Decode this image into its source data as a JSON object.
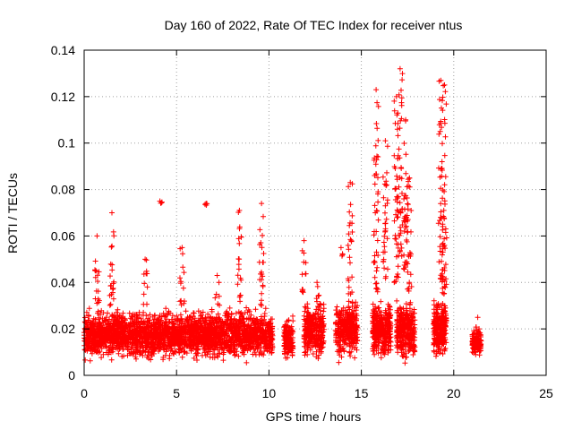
{
  "chart_data": {
    "type": "scatter",
    "title": "Day 160 of 2022, Rate Of TEC Index for receiver ntus",
    "xlabel": "GPS time / hours",
    "ylabel": "ROTI / TECUs",
    "xlim": [
      0,
      25
    ],
    "ylim": [
      0,
      0.14
    ],
    "x_ticks": [
      0,
      5,
      10,
      15,
      20,
      25
    ],
    "x_tick_labels": [
      "0",
      "5",
      "10",
      "15",
      "20",
      "25"
    ],
    "y_ticks": [
      0,
      0.02,
      0.04,
      0.06,
      0.08,
      0.1,
      0.12,
      0.14
    ],
    "y_tick_labels": [
      "0",
      "0.02",
      "0.04",
      "0.06",
      "0.08",
      "0.1",
      "0.12",
      "0.14"
    ],
    "grid": true,
    "marker": "+",
    "color": "#ff0000",
    "clusters": [
      {
        "x_range": [
          0,
          10.2
        ],
        "y_base": [
          0.005,
          0.03
        ],
        "count": 2600,
        "dense": true
      },
      {
        "x_range": [
          10.8,
          11.3
        ],
        "y_base": [
          0.004,
          0.027
        ],
        "count": 160
      },
      {
        "x_range": [
          11.9,
          13.0
        ],
        "y_base": [
          0.005,
          0.033
        ],
        "count": 300
      },
      {
        "x_range": [
          13.6,
          14.8
        ],
        "y_base": [
          0.005,
          0.035
        ],
        "count": 350
      },
      {
        "x_range": [
          15.6,
          16.6
        ],
        "y_base": [
          0.005,
          0.034
        ],
        "count": 320
      },
      {
        "x_range": [
          16.9,
          17.9
        ],
        "y_base": [
          0.004,
          0.034
        ],
        "count": 340
      },
      {
        "x_range": [
          18.9,
          19.6
        ],
        "y_base": [
          0.005,
          0.035
        ],
        "count": 280
      },
      {
        "x_range": [
          21.0,
          21.5
        ],
        "y_base": [
          0.007,
          0.022
        ],
        "count": 120
      }
    ],
    "spikes": [
      {
        "x": 0.7,
        "y_range": [
          0.03,
          0.06
        ]
      },
      {
        "x": 1.5,
        "y_range": [
          0.03,
          0.07
        ]
      },
      {
        "x": 3.3,
        "y_range": [
          0.03,
          0.05
        ]
      },
      {
        "x": 4.1,
        "y_range": [
          0.074,
          0.075
        ]
      },
      {
        "x": 5.3,
        "y_range": [
          0.03,
          0.055
        ]
      },
      {
        "x": 6.6,
        "y_range": [
          0.073,
          0.074
        ]
      },
      {
        "x": 7.2,
        "y_range": [
          0.03,
          0.043
        ]
      },
      {
        "x": 8.4,
        "y_range": [
          0.03,
          0.071
        ]
      },
      {
        "x": 9.6,
        "y_range": [
          0.03,
          0.074
        ]
      },
      {
        "x": 11.9,
        "y_range": [
          0.035,
          0.058
        ]
      },
      {
        "x": 12.6,
        "y_range": [
          0.03,
          0.04
        ]
      },
      {
        "x": 13.9,
        "y_range": [
          0.05,
          0.055
        ]
      },
      {
        "x": 14.4,
        "y_range": [
          0.035,
          0.083
        ]
      },
      {
        "x": 15.8,
        "y_range": [
          0.035,
          0.123
        ]
      },
      {
        "x": 16.3,
        "y_range": [
          0.04,
          0.101
        ]
      },
      {
        "x": 16.9,
        "y_range": [
          0.04,
          0.12
        ]
      },
      {
        "x": 17.1,
        "y_range": [
          0.05,
          0.132
        ]
      },
      {
        "x": 17.4,
        "y_range": [
          0.045,
          0.11
        ]
      },
      {
        "x": 17.6,
        "y_range": [
          0.035,
          0.085
        ]
      },
      {
        "x": 19.3,
        "y_range": [
          0.04,
          0.127
        ]
      },
      {
        "x": 19.5,
        "y_range": [
          0.035,
          0.125
        ]
      },
      {
        "x": 21.3,
        "y_range": [
          0.02,
          0.025
        ]
      }
    ]
  }
}
